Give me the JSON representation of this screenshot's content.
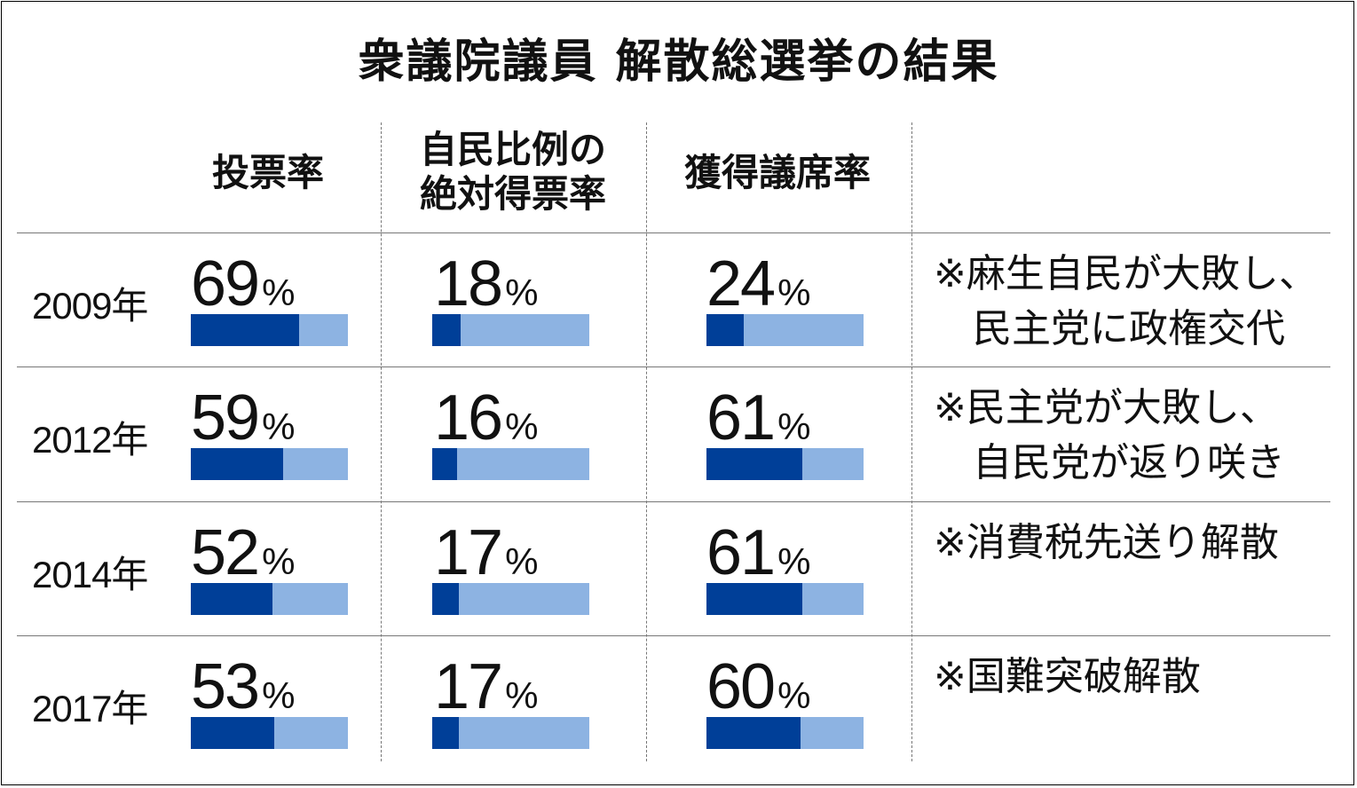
{
  "title": "衆議院議員 解散総選挙の結果",
  "columns": [
    "投票率",
    "自民比例の\n絶対得票率",
    "獲得議席率"
  ],
  "unit": "%",
  "rows": [
    {
      "year": "2009年",
      "values": [
        "69",
        "18",
        "24"
      ],
      "note": "※麻生自民が大敗し、\n　民主党に政権交代"
    },
    {
      "year": "2012年",
      "values": [
        "59",
        "16",
        "61"
      ],
      "note": "※民主党が大敗し、\n　自民党が返り咲き"
    },
    {
      "year": "2014年",
      "values": [
        "52",
        "17",
        "61"
      ],
      "note": "※消費税先送り解散"
    },
    {
      "year": "2017年",
      "values": [
        "53",
        "17",
        "60"
      ],
      "note": "※国難突破解散"
    }
  ],
  "colors": {
    "bar_fill": "#003f98",
    "bar_track": "#8db3e2"
  },
  "chart_data": {
    "type": "bar",
    "title": "衆議院議員 解散総選挙の結果",
    "categories": [
      "2009年",
      "2012年",
      "2014年",
      "2017年"
    ],
    "ylim": [
      0,
      100
    ],
    "series": [
      {
        "name": "投票率",
        "values": [
          69,
          59,
          52,
          53
        ]
      },
      {
        "name": "自民比例の絶対得票率",
        "values": [
          18,
          16,
          17,
          17
        ]
      },
      {
        "name": "獲得議席率",
        "values": [
          24,
          61,
          61,
          60
        ]
      }
    ]
  }
}
